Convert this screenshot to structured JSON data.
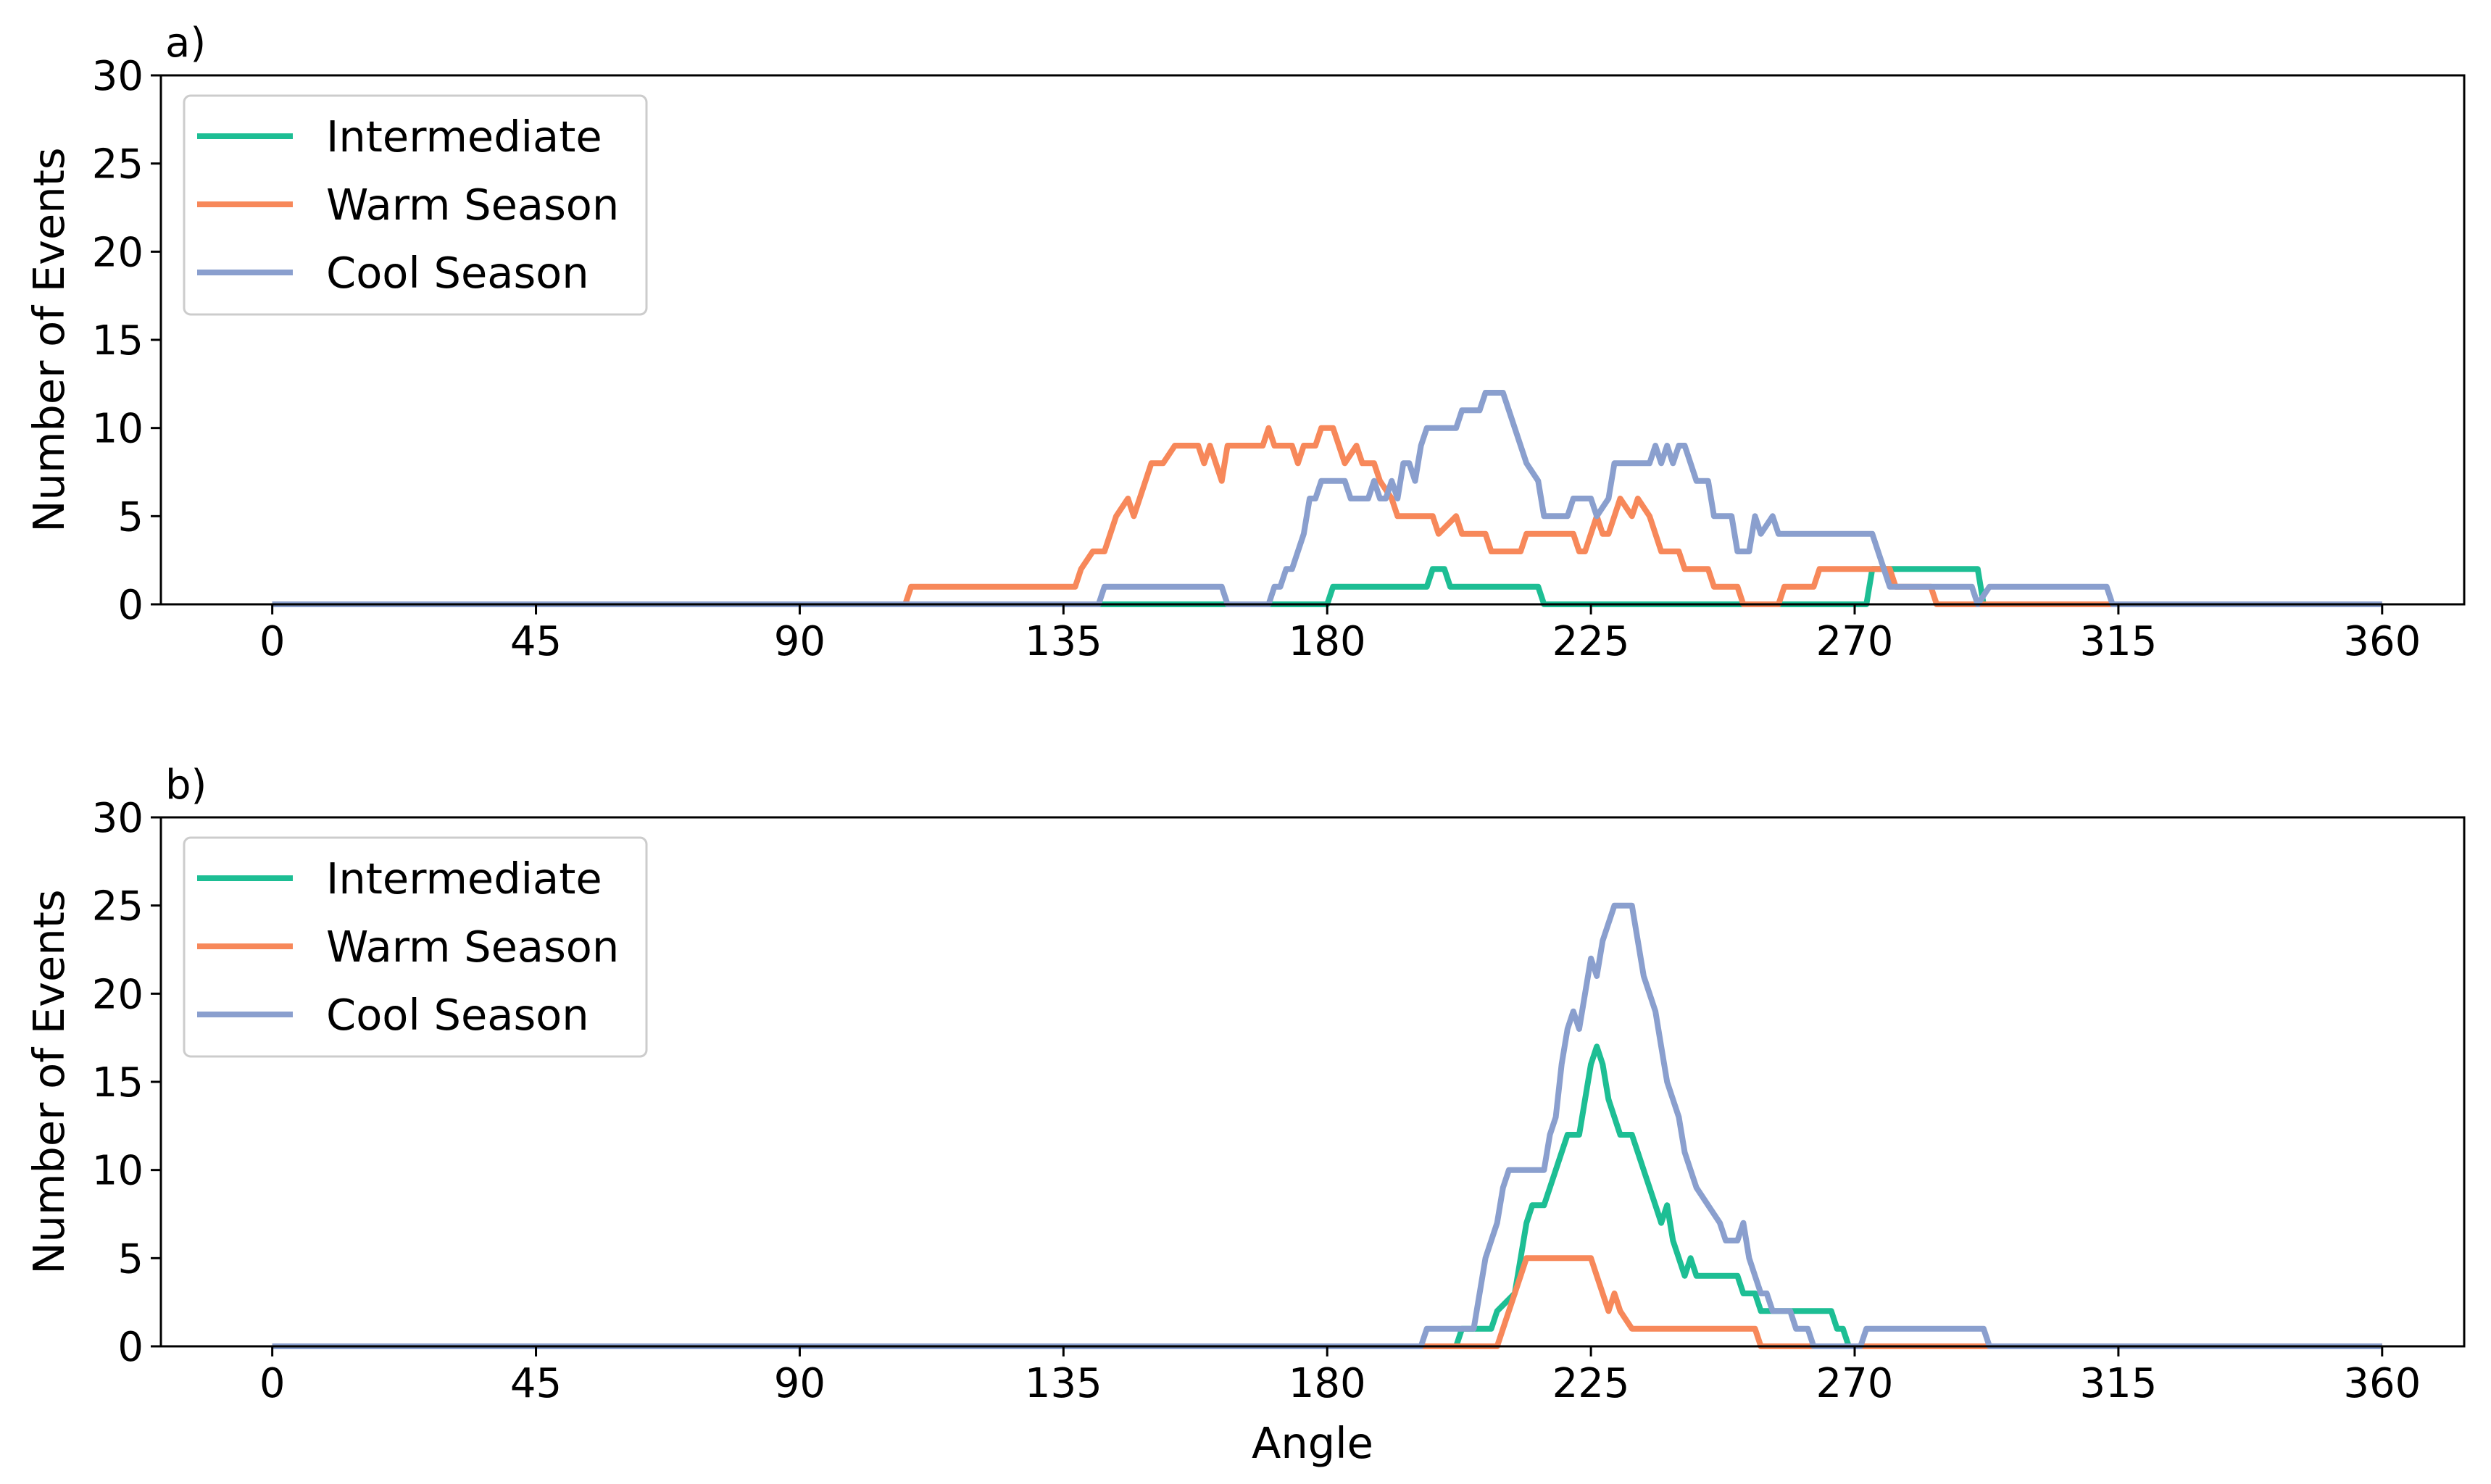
{
  "chart_data": [
    {
      "type": "line",
      "panel_label": "a)",
      "xlabel": "",
      "ylabel": "Number of Events",
      "xlim": [
        -19,
        374
      ],
      "ylim": [
        0,
        30
      ],
      "xticks": [
        0,
        45,
        90,
        135,
        180,
        225,
        270,
        315,
        360
      ],
      "yticks": [
        0,
        5,
        10,
        15,
        20,
        25,
        30
      ],
      "legend_position": "top-left",
      "series": [
        {
          "name": "Intermediate",
          "color": "#1dbe94",
          "points": [
            [
              0,
              0
            ],
            [
              180,
              0
            ],
            [
              181,
              1
            ],
            [
              197,
              1
            ],
            [
              198,
              2
            ],
            [
              200,
              2
            ],
            [
              201,
              1
            ],
            [
              216,
              1
            ],
            [
              217,
              0
            ],
            [
              272,
              0
            ],
            [
              273,
              2
            ],
            [
              291,
              2
            ],
            [
              292,
              0
            ],
            [
              360,
              0
            ]
          ]
        },
        {
          "name": "Warm Season",
          "color": "#f7885a",
          "points": [
            [
              0,
              0
            ],
            [
              108,
              0
            ],
            [
              109,
              1
            ],
            [
              137,
              1
            ],
            [
              138,
              2
            ],
            [
              140,
              3
            ],
            [
              142,
              3
            ],
            [
              143,
              4
            ],
            [
              144,
              5
            ],
            [
              146,
              6
            ],
            [
              147,
              5
            ],
            [
              149,
              7
            ],
            [
              150,
              8
            ],
            [
              152,
              8
            ],
            [
              154,
              9
            ],
            [
              158,
              9
            ],
            [
              159,
              8
            ],
            [
              160,
              9
            ],
            [
              161,
              8
            ],
            [
              162,
              7
            ],
            [
              163,
              9
            ],
            [
              169,
              9
            ],
            [
              170,
              10
            ],
            [
              171,
              9
            ],
            [
              174,
              9
            ],
            [
              175,
              8
            ],
            [
              176,
              9
            ],
            [
              178,
              9
            ],
            [
              179,
              10
            ],
            [
              181,
              10
            ],
            [
              182,
              9
            ],
            [
              183,
              8
            ],
            [
              185,
              9
            ],
            [
              186,
              8
            ],
            [
              188,
              8
            ],
            [
              189,
              7
            ],
            [
              191,
              6
            ],
            [
              192,
              5
            ],
            [
              198,
              5
            ],
            [
              199,
              4
            ],
            [
              202,
              5
            ],
            [
              203,
              4
            ],
            [
              207,
              4
            ],
            [
              208,
              3
            ],
            [
              213,
              3
            ],
            [
              214,
              4
            ],
            [
              222,
              4
            ],
            [
              223,
              3
            ],
            [
              224,
              3
            ],
            [
              225,
              4
            ],
            [
              226,
              5
            ],
            [
              227,
              4
            ],
            [
              228,
              4
            ],
            [
              229,
              5
            ],
            [
              230,
              6
            ],
            [
              232,
              5
            ],
            [
              233,
              6
            ],
            [
              235,
              5
            ],
            [
              236,
              4
            ],
            [
              237,
              3
            ],
            [
              240,
              3
            ],
            [
              241,
              2
            ],
            [
              245,
              2
            ],
            [
              246,
              1
            ],
            [
              250,
              1
            ],
            [
              251,
              0
            ],
            [
              257,
              0
            ],
            [
              258,
              1
            ],
            [
              263,
              1
            ],
            [
              264,
              2
            ],
            [
              276,
              2
            ],
            [
              277,
              1
            ],
            [
              283,
              1
            ],
            [
              284,
              0
            ],
            [
              360,
              0
            ]
          ]
        },
        {
          "name": "Cool Season",
          "color": "#8a9fce",
          "points": [
            [
              0,
              0
            ],
            [
              141,
              0
            ],
            [
              142,
              1
            ],
            [
              162,
              1
            ],
            [
              163,
              0
            ],
            [
              170,
              0
            ],
            [
              171,
              1
            ],
            [
              172,
              1
            ],
            [
              173,
              2
            ],
            [
              174,
              2
            ],
            [
              175,
              3
            ],
            [
              176,
              4
            ],
            [
              177,
              6
            ],
            [
              178,
              6
            ],
            [
              179,
              7
            ],
            [
              183,
              7
            ],
            [
              184,
              6
            ],
            [
              187,
              6
            ],
            [
              188,
              7
            ],
            [
              189,
              6
            ],
            [
              190,
              6
            ],
            [
              191,
              7
            ],
            [
              192,
              6
            ],
            [
              193,
              8
            ],
            [
              194,
              8
            ],
            [
              195,
              7
            ],
            [
              196,
              9
            ],
            [
              197,
              10
            ],
            [
              202,
              10
            ],
            [
              203,
              11
            ],
            [
              206,
              11
            ],
            [
              207,
              12
            ],
            [
              210,
              12
            ],
            [
              211,
              11
            ],
            [
              213,
              9
            ],
            [
              214,
              8
            ],
            [
              216,
              7
            ],
            [
              217,
              5
            ],
            [
              221,
              5
            ],
            [
              222,
              6
            ],
            [
              225,
              6
            ],
            [
              226,
              5
            ],
            [
              228,
              6
            ],
            [
              229,
              8
            ],
            [
              235,
              8
            ],
            [
              236,
              9
            ],
            [
              237,
              8
            ],
            [
              238,
              9
            ],
            [
              239,
              8
            ],
            [
              240,
              9
            ],
            [
              241,
              9
            ],
            [
              242,
              8
            ],
            [
              243,
              7
            ],
            [
              245,
              7
            ],
            [
              246,
              5
            ],
            [
              249,
              5
            ],
            [
              250,
              3
            ],
            [
              252,
              3
            ],
            [
              253,
              5
            ],
            [
              254,
              4
            ],
            [
              256,
              5
            ],
            [
              257,
              4
            ],
            [
              273,
              4
            ],
            [
              274,
              3
            ],
            [
              275,
              2
            ],
            [
              276,
              1
            ],
            [
              290,
              1
            ],
            [
              291,
              0
            ],
            [
              293,
              1
            ],
            [
              313,
              1
            ],
            [
              314,
              0
            ],
            [
              360,
              0
            ]
          ]
        }
      ]
    },
    {
      "type": "line",
      "panel_label": "b)",
      "xlabel": "Angle",
      "ylabel": "Number of Events",
      "xlim": [
        -19,
        374
      ],
      "ylim": [
        0,
        30
      ],
      "xticks": [
        0,
        45,
        90,
        135,
        180,
        225,
        270,
        315,
        360
      ],
      "yticks": [
        0,
        5,
        10,
        15,
        20,
        25,
        30
      ],
      "legend_position": "top-left",
      "series": [
        {
          "name": "Intermediate",
          "color": "#1dbe94",
          "points": [
            [
              0,
              0
            ],
            [
              202,
              0
            ],
            [
              203,
              1
            ],
            [
              208,
              1
            ],
            [
              209,
              2
            ],
            [
              212,
              3
            ],
            [
              213,
              5
            ],
            [
              214,
              7
            ],
            [
              215,
              8
            ],
            [
              217,
              8
            ],
            [
              218,
              9
            ],
            [
              219,
              10
            ],
            [
              220,
              11
            ],
            [
              221,
              12
            ],
            [
              223,
              12
            ],
            [
              224,
              14
            ],
            [
              225,
              16
            ],
            [
              226,
              17
            ],
            [
              227,
              16
            ],
            [
              228,
              14
            ],
            [
              229,
              13
            ],
            [
              230,
              12
            ],
            [
              232,
              12
            ],
            [
              233,
              11
            ],
            [
              234,
              10
            ],
            [
              235,
              9
            ],
            [
              236,
              8
            ],
            [
              237,
              7
            ],
            [
              238,
              8
            ],
            [
              239,
              6
            ],
            [
              240,
              5
            ],
            [
              241,
              4
            ],
            [
              242,
              5
            ],
            [
              243,
              4
            ],
            [
              250,
              4
            ],
            [
              251,
              3
            ],
            [
              253,
              3
            ],
            [
              254,
              2
            ],
            [
              266,
              2
            ],
            [
              267,
              1
            ],
            [
              268,
              1
            ],
            [
              269,
              0
            ],
            [
              360,
              0
            ]
          ]
        },
        {
          "name": "Warm Season",
          "color": "#f7885a",
          "points": [
            [
              0,
              0
            ],
            [
              209,
              0
            ],
            [
              210,
              1
            ],
            [
              211,
              2
            ],
            [
              212,
              3
            ],
            [
              213,
              4
            ],
            [
              214,
              5
            ],
            [
              225,
              5
            ],
            [
              226,
              4
            ],
            [
              227,
              3
            ],
            [
              228,
              2
            ],
            [
              229,
              3
            ],
            [
              230,
              2
            ],
            [
              232,
              1
            ],
            [
              253,
              1
            ],
            [
              254,
              0
            ],
            [
              360,
              0
            ]
          ]
        },
        {
          "name": "Cool Season",
          "color": "#8a9fce",
          "points": [
            [
              0,
              0
            ],
            [
              196,
              0
            ],
            [
              197,
              1
            ],
            [
              205,
              1
            ],
            [
              206,
              3
            ],
            [
              207,
              5
            ],
            [
              208,
              6
            ],
            [
              209,
              7
            ],
            [
              210,
              9
            ],
            [
              211,
              10
            ],
            [
              212,
              10
            ],
            [
              217,
              10
            ],
            [
              218,
              12
            ],
            [
              219,
              13
            ],
            [
              220,
              16
            ],
            [
              221,
              18
            ],
            [
              222,
              19
            ],
            [
              223,
              18
            ],
            [
              224,
              20
            ],
            [
              225,
              22
            ],
            [
              226,
              21
            ],
            [
              227,
              23
            ],
            [
              228,
              24
            ],
            [
              229,
              25
            ],
            [
              232,
              25
            ],
            [
              233,
              23
            ],
            [
              234,
              21
            ],
            [
              236,
              19
            ],
            [
              237,
              17
            ],
            [
              238,
              15
            ],
            [
              240,
              13
            ],
            [
              241,
              11
            ],
            [
              242,
              10
            ],
            [
              243,
              9
            ],
            [
              245,
              8
            ],
            [
              247,
              7
            ],
            [
              248,
              6
            ],
            [
              250,
              6
            ],
            [
              251,
              7
            ],
            [
              252,
              5
            ],
            [
              253,
              4
            ],
            [
              254,
              3
            ],
            [
              255,
              3
            ],
            [
              256,
              2
            ],
            [
              259,
              2
            ],
            [
              260,
              1
            ],
            [
              262,
              1
            ],
            [
              263,
              0
            ],
            [
              271,
              0
            ],
            [
              272,
              1
            ],
            [
              292,
              1
            ],
            [
              293,
              0
            ],
            [
              360,
              0
            ]
          ]
        }
      ]
    }
  ]
}
